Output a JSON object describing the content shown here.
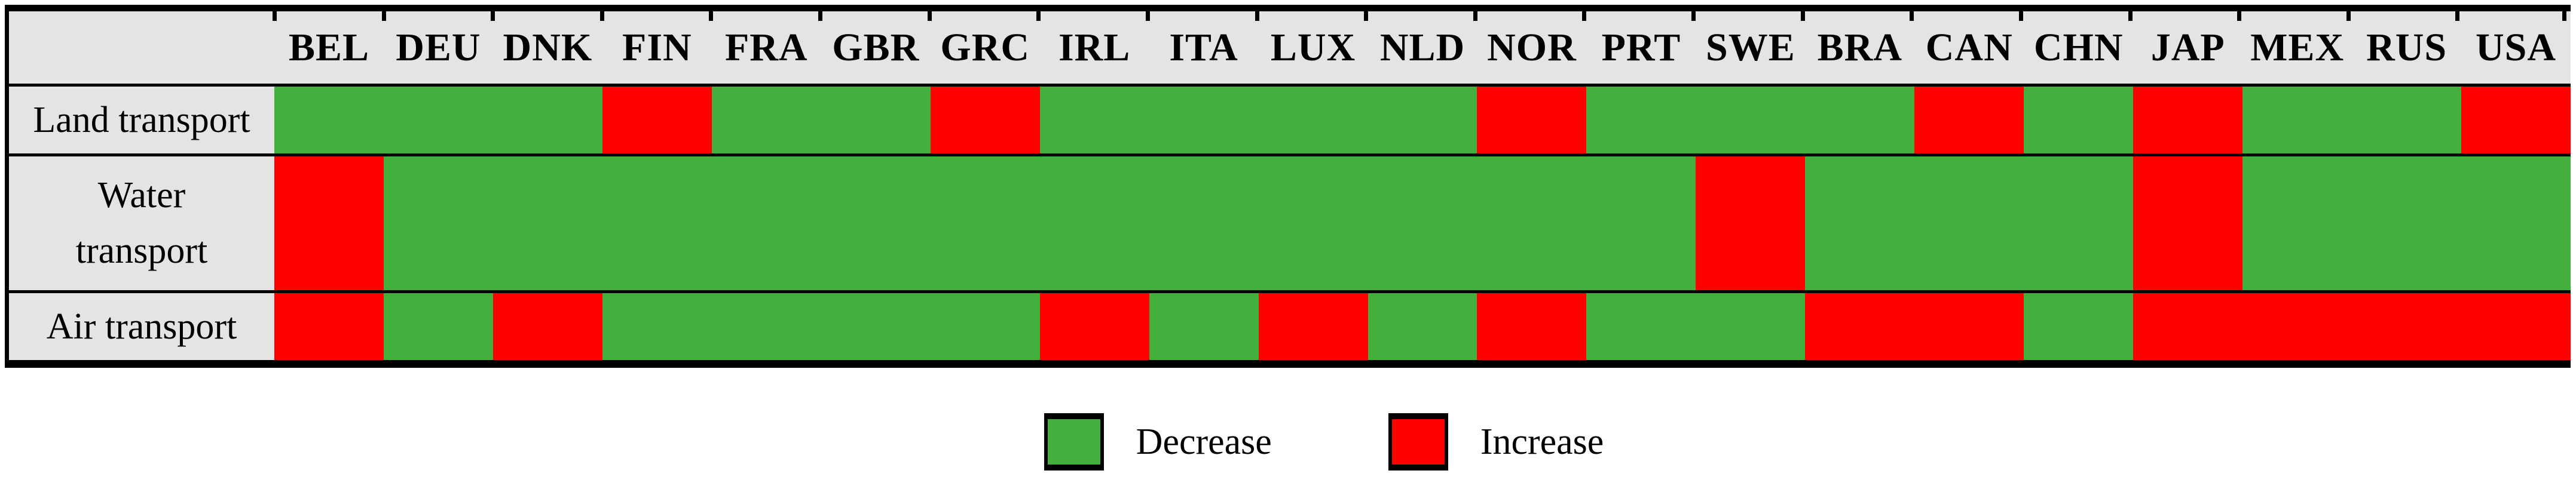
{
  "colors": {
    "decrease": "#43AF3C",
    "increase": "#FF0000",
    "header_bg": "#E4E4E4",
    "border": "#000000"
  },
  "table": {
    "columns": [
      "BEL",
      "DEU",
      "DNK",
      "FIN",
      "FRA",
      "GBR",
      "GRC",
      "IRL",
      "ITA",
      "LUX",
      "NLD",
      "NOR",
      "PRT",
      "SWE",
      "BRA",
      "CAN",
      "CHN",
      "JAP",
      "MEX",
      "RUS",
      "USA"
    ],
    "rows": [
      {
        "label": "Land transport",
        "cells": [
          "decrease",
          "decrease",
          "decrease",
          "increase",
          "decrease",
          "decrease",
          "increase",
          "decrease",
          "decrease",
          "decrease",
          "decrease",
          "increase",
          "decrease",
          "decrease",
          "decrease",
          "increase",
          "decrease",
          "increase",
          "decrease",
          "decrease",
          "increase"
        ]
      },
      {
        "label": "Water transport",
        "cells": [
          "increase",
          "decrease",
          "decrease",
          "decrease",
          "decrease",
          "decrease",
          "decrease",
          "decrease",
          "decrease",
          "decrease",
          "decrease",
          "decrease",
          "decrease",
          "increase",
          "decrease",
          "decrease",
          "decrease",
          "increase",
          "decrease",
          "decrease",
          "decrease"
        ]
      },
      {
        "label": "Air transport",
        "cells": [
          "increase",
          "decrease",
          "increase",
          "decrease",
          "decrease",
          "decrease",
          "decrease",
          "increase",
          "decrease",
          "increase",
          "decrease",
          "increase",
          "decrease",
          "decrease",
          "increase",
          "increase",
          "decrease",
          "increase",
          "increase",
          "increase",
          "increase"
        ]
      }
    ]
  },
  "legend": [
    {
      "label": "Decrease",
      "key": "decrease"
    },
    {
      "label": "Increase",
      "key": "increase"
    }
  ],
  "chart_data": {
    "type": "heatmap",
    "x_categories": [
      "BEL",
      "DEU",
      "DNK",
      "FIN",
      "FRA",
      "GBR",
      "GRC",
      "IRL",
      "ITA",
      "LUX",
      "NLD",
      "NOR",
      "PRT",
      "SWE",
      "BRA",
      "CAN",
      "CHN",
      "JAP",
      "MEX",
      "RUS",
      "USA"
    ],
    "y_categories": [
      "Land transport",
      "Water transport",
      "Air transport"
    ],
    "values": [
      [
        "Decrease",
        "Decrease",
        "Decrease",
        "Increase",
        "Decrease",
        "Decrease",
        "Increase",
        "Decrease",
        "Decrease",
        "Decrease",
        "Decrease",
        "Increase",
        "Decrease",
        "Decrease",
        "Decrease",
        "Increase",
        "Decrease",
        "Increase",
        "Decrease",
        "Decrease",
        "Increase"
      ],
      [
        "Increase",
        "Decrease",
        "Decrease",
        "Decrease",
        "Decrease",
        "Decrease",
        "Decrease",
        "Decrease",
        "Decrease",
        "Decrease",
        "Decrease",
        "Decrease",
        "Decrease",
        "Increase",
        "Decrease",
        "Decrease",
        "Decrease",
        "Increase",
        "Decrease",
        "Decrease",
        "Decrease"
      ],
      [
        "Increase",
        "Decrease",
        "Increase",
        "Decrease",
        "Decrease",
        "Decrease",
        "Decrease",
        "Increase",
        "Decrease",
        "Increase",
        "Decrease",
        "Increase",
        "Decrease",
        "Decrease",
        "Increase",
        "Increase",
        "Decrease",
        "Increase",
        "Increase",
        "Increase",
        "Increase"
      ]
    ],
    "legend_entries": [
      "Decrease",
      "Increase"
    ],
    "legend_position": "bottom-center",
    "value_colors": {
      "Decrease": "#43AF3C",
      "Increase": "#FF0000"
    },
    "grid": false,
    "title": "",
    "xlabel": "",
    "ylabel": ""
  }
}
